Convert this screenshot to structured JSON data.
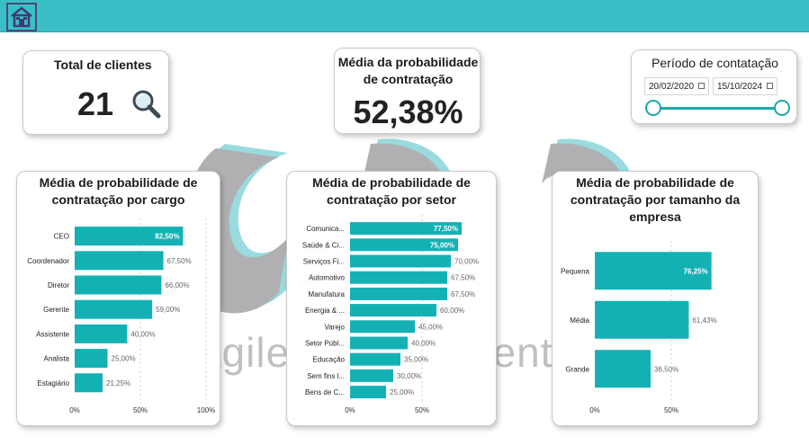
{
  "colors": {
    "accent": "#3bbfc6",
    "bar": "#14b1b4",
    "watermark_gray": "#a8a8ab",
    "watermark_cyan": "#8ed8dc"
  },
  "header": {
    "home_icon": "home-icon"
  },
  "watermark": {
    "text": "agile management return"
  },
  "kpi_clients": {
    "title": "Total de clientes",
    "value": "21",
    "icon": "magnifier-icon"
  },
  "kpi_prob": {
    "title_line1": "Média da probabilidade",
    "title_line2": "de contratação",
    "value": "52,38%"
  },
  "period": {
    "title": "Período de contatação",
    "start_date": "20/02/2020",
    "end_date": "15/10/2024",
    "range_fraction": [
      0,
      1
    ]
  },
  "chart_data": [
    {
      "type": "bar",
      "orientation": "horizontal",
      "title_lines": [
        "Média de probabilidade de",
        "contratação por cargo"
      ],
      "categories": [
        "CEO",
        "Coordenador",
        "Diretor",
        "Gerente",
        "Assistente",
        "Analista",
        "Estagiário"
      ],
      "values": [
        82.5,
        67.5,
        66.0,
        59.0,
        40.0,
        25.0,
        21.25
      ],
      "value_labels": [
        "82,50%",
        "67,50%",
        "66,00%",
        "59,00%",
        "40,00%",
        "25,00%",
        "21,25%"
      ],
      "xlim": [
        0,
        100
      ],
      "x_ticks": [
        0,
        50,
        100
      ],
      "x_tick_labels": [
        "0%",
        "50%",
        "100%"
      ]
    },
    {
      "type": "bar",
      "orientation": "horizontal",
      "title_lines": [
        "Média de probabilidade de",
        "contratação por setor"
      ],
      "categories": [
        "Comunica...",
        "Saúde & Ci...",
        "Serviços Fi...",
        "Automotivo",
        "Manufatura",
        "Energia & ...",
        "Varejo",
        "Setor Públ...",
        "Educação",
        "Sem fins l...",
        "Bens de C..."
      ],
      "values": [
        77.5,
        75.0,
        70.0,
        67.5,
        67.5,
        60.0,
        45.0,
        40.0,
        35.0,
        30.0,
        25.0
      ],
      "value_labels": [
        "77,50%",
        "75,00%",
        "70,00%",
        "67,50%",
        "67,50%",
        "60,00%",
        "45,00%",
        "40,00%",
        "35,00%",
        "30,00%",
        "25,00%"
      ],
      "xlim": [
        0,
        100
      ],
      "x_ticks": [
        0,
        50
      ],
      "x_tick_labels": [
        "0%",
        "50%"
      ]
    },
    {
      "type": "bar",
      "orientation": "horizontal",
      "title_lines": [
        "Média de probabilidade de",
        "contratação por tamanho da",
        "empresa"
      ],
      "categories": [
        "Pequena",
        "Média",
        "Grande"
      ],
      "values": [
        76.25,
        61.43,
        36.5
      ],
      "value_labels": [
        "76,25%",
        "61,43%",
        "36,50%"
      ],
      "xlim": [
        0,
        100
      ],
      "x_ticks": [
        0,
        50
      ],
      "x_tick_labels": [
        "0%",
        "50%"
      ]
    }
  ]
}
